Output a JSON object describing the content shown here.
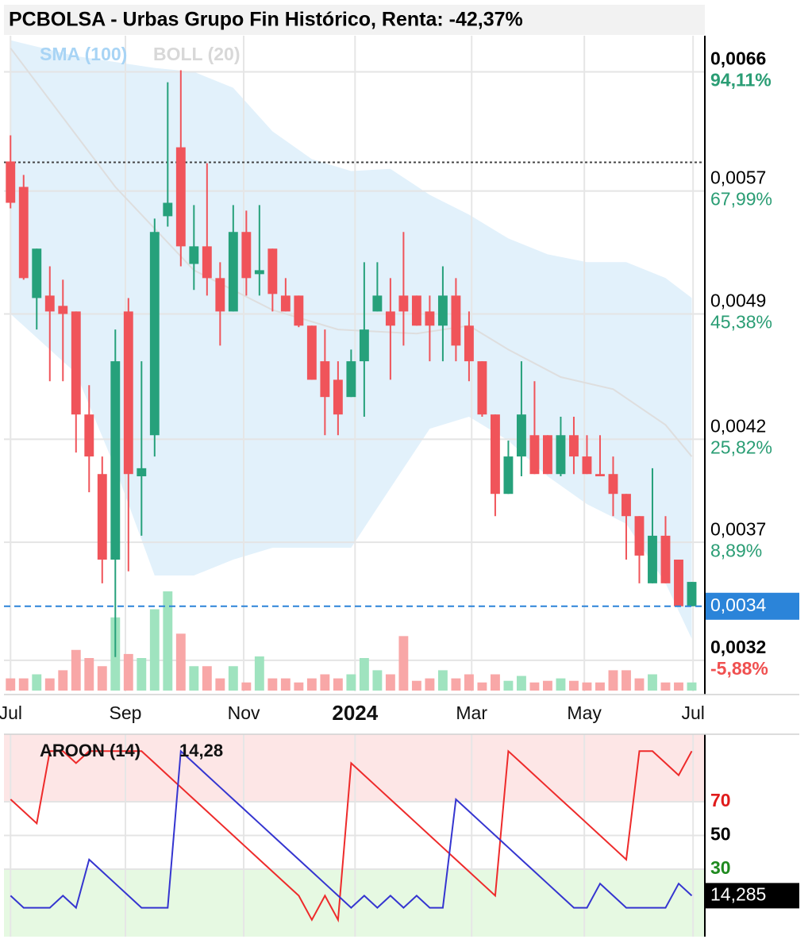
{
  "chart_data": [
    {
      "type": "candlestick",
      "title": "PCBOLSA - Urbas Grupo Fin Histórico, Renta: -42,37%",
      "x": [
        0,
        1,
        2,
        3,
        4,
        5,
        6,
        7,
        8,
        9,
        10,
        11,
        12,
        13,
        14,
        15,
        16,
        17,
        18,
        19,
        20,
        21,
        22,
        23,
        24,
        25,
        26,
        27,
        28,
        29,
        30,
        31,
        32,
        33,
        34,
        35,
        36,
        37,
        38,
        39,
        40,
        41,
        42,
        43,
        44,
        45,
        46,
        47,
        48,
        49,
        50,
        51,
        52
      ],
      "open": [
        0.005911,
        0.005729,
        0.004997,
        0.005012,
        0.004949,
        0.004915,
        0.00433,
        0.004024,
        0.003622,
        0.004915,
        0.004013,
        0.004221,
        0.005526,
        0.006015,
        0.005211,
        0.005325,
        0.005121,
        0.004915,
        0.00542,
        0.005146,
        0.00531,
        0.005012,
        0.005012,
        0.00483,
        0.004623,
        0.004519,
        0.004424,
        0.004623,
        0.004915,
        0.004915,
        0.005012,
        0.005012,
        0.004915,
        0.00483,
        0.005012,
        0.00483,
        0.004623,
        0.00433,
        0.003927,
        0.004112,
        0.004221,
        0.004221,
        0.004024,
        0.004221,
        0.004112,
        0.004024,
        0.004024,
        0.003927,
        0.003821,
        0.003518,
        0.00373,
        0.003622,
        0.00342
      ],
      "high": [
        0.006104,
        0.005814,
        0.00531,
        0.005196,
        0.005111,
        0.004915,
        0.004489,
        0.004112,
        0.004807,
        0.004997,
        0.004623,
        0.00551,
        0.006516,
        0.006613,
        0.005602,
        0.005898,
        0.005222,
        0.005602,
        0.005564,
        0.005602,
        0.00531,
        0.005121,
        0.005012,
        0.00483,
        0.004807,
        0.004623,
        0.00469,
        0.005222,
        0.005222,
        0.005121,
        0.00542,
        0.005012,
        0.005012,
        0.005196,
        0.005121,
        0.004915,
        0.004623,
        0.00433,
        0.004193,
        0.004623,
        0.004511,
        0.004221,
        0.004318,
        0.004318,
        0.004221,
        0.004221,
        0.004112,
        0.003927,
        0.003821,
        0.004053,
        0.003821,
        0.003622,
        0.003524
      ],
      "low": [
        0.00558,
        0.005111,
        0.004807,
        0.004511,
        0.004511,
        0.004132,
        0.003935,
        0.003518,
        0.003213,
        0.00357,
        0.00373,
        0.004112,
        0.005456,
        0.005196,
        0.005047,
        0.005012,
        0.004713,
        0.004915,
        0.005012,
        0.005012,
        0.004915,
        0.004915,
        0.004821,
        0.004519,
        0.004221,
        0.004221,
        0.004424,
        0.004318,
        0.004915,
        0.004519,
        0.004713,
        0.00483,
        0.004623,
        0.004623,
        0.004623,
        0.004511,
        0.004318,
        0.003821,
        0.003927,
        0.004013,
        0.004024,
        0.004024,
        0.004013,
        0.004024,
        0.004024,
        0.004013,
        0.003821,
        0.003622,
        0.003518,
        0.003518,
        0.003518,
        0.00342,
        0.00342
      ],
      "close": [
        0.005618,
        0.005121,
        0.00531,
        0.004915,
        0.0049,
        0.00433,
        0.004112,
        0.003622,
        0.004623,
        0.004024,
        0.004053,
        0.00542,
        0.005618,
        0.005325,
        0.005325,
        0.005121,
        0.004915,
        0.00542,
        0.005121,
        0.005171,
        0.005022,
        0.004915,
        0.00483,
        0.004519,
        0.004424,
        0.00433,
        0.004623,
        0.004807,
        0.005012,
        0.00483,
        0.004915,
        0.00483,
        0.00483,
        0.005012,
        0.004713,
        0.004623,
        0.00433,
        0.003927,
        0.004112,
        0.00433,
        0.004024,
        0.004024,
        0.004221,
        0.004112,
        0.004024,
        0.004013,
        0.003927,
        0.003821,
        0.00364,
        0.00373,
        0.003518,
        0.00342,
        0.003524
      ],
      "volume": [
        15,
        15,
        20,
        15,
        25,
        50,
        40,
        30,
        90,
        45,
        40,
        100,
        122,
        70,
        30,
        30,
        15,
        30,
        10,
        42,
        15,
        15,
        10,
        15,
        20,
        15,
        20,
        40,
        25,
        20,
        67,
        12,
        15,
        25,
        15,
        20,
        10,
        20,
        12,
        18,
        10,
        12,
        15,
        12,
        10,
        10,
        25,
        25,
        15,
        20,
        10,
        10,
        10
      ],
      "up_color": "#26a17b",
      "down_color": "#f0545a",
      "volume_up_color": "#9fe3bf",
      "volume_down_color": "#f8a7a7",
      "sma": {
        "name": "SMA (100)",
        "label_color": "#a8d4f5",
        "color": "#dedede",
        "x": [
          0,
          8,
          14,
          20,
          25,
          31,
          35,
          38,
          42,
          46,
          50,
          52
        ],
        "values": [
          0.006795,
          0.005729,
          0.005171,
          0.004924,
          0.004807,
          0.004783,
          0.00483,
          0.00469,
          0.004534,
          0.004467,
          0.004275,
          0.004112
        ]
      },
      "boll": {
        "name": "BOLL (20)",
        "label_color": "#d8d8d8",
        "color": "#e2f1fb",
        "upper": {
          "x": [
            0,
            5,
            11,
            14,
            17,
            20,
            23,
            26,
            29,
            32,
            35,
            38,
            41,
            44,
            47,
            50,
            52
          ],
          "values": [
            0.006862,
            0.006729,
            0.006632,
            0.0066,
            0.006472,
            0.006134,
            0.005928,
            0.005842,
            0.005857,
            0.005673,
            0.005537,
            0.005377,
            0.005273,
            0.005222,
            0.005222,
            0.005121,
            0.004997
          ]
        },
        "lower": {
          "x": [
            0,
            5,
            8,
            10,
            11,
            14,
            17,
            20,
            23,
            26,
            28,
            30,
            32,
            35,
            38,
            41,
            44,
            47,
            50,
            52
          ],
          "values": [
            0.0049,
            0.004555,
            0.004053,
            0.003712,
            0.003552,
            0.003552,
            0.003622,
            0.003675,
            0.003675,
            0.003675,
            0.00386,
            0.004053,
            0.004255,
            0.004318,
            0.004193,
            0.004013,
            0.003878,
            0.003785,
            0.003518,
            0.003286
          ]
        }
      },
      "reference_line": 0.005905,
      "last_price": {
        "value": 0.00342,
        "label": "0,0034",
        "color": "#2b84d9"
      },
      "xlim": [
        -0.5,
        53
      ],
      "xticks": [
        {
          "value": 0,
          "label": "Jul"
        },
        {
          "value": 8.77,
          "label": "Sep"
        },
        {
          "value": 17.8,
          "label": "Nov"
        },
        {
          "value": 26.3,
          "label": "2024",
          "bold": true
        },
        {
          "value": 35.2,
          "label": "Mar"
        },
        {
          "value": 43.8,
          "label": "May"
        },
        {
          "value": 52.1,
          "label": "Jul"
        }
      ],
      "ylim": [
        0.00308,
        0.0069
      ],
      "log_scale": true,
      "grid": true,
      "yticks": [
        {
          "value": 0.0066,
          "label": "0,0066",
          "change": "94,11%",
          "change_color": "#2a9d74",
          "bold": true
        },
        {
          "value": 0.0057,
          "label": "0,0057",
          "change": "67,99%",
          "change_color": "#2a9d74"
        },
        {
          "value": 0.0049,
          "label": "0,0049",
          "change": "45,38%",
          "change_color": "#2a9d74"
        },
        {
          "value": 0.0042,
          "label": "0,0042",
          "change": "25,82%",
          "change_color": "#2a9d74"
        },
        {
          "value": 0.0037,
          "label": "0,0037",
          "change": "8,89%",
          "change_color": "#2a9d74"
        },
        {
          "value": 0.0032,
          "label": "0,0032",
          "change": "-5,88%",
          "change_color": "#f05050",
          "bold": true
        }
      ]
    },
    {
      "type": "line",
      "title": "AROON (14)",
      "current_label": "14,28",
      "x": [
        0,
        1,
        2,
        3,
        4,
        5,
        6,
        7,
        8,
        9,
        10,
        11,
        12,
        13,
        14,
        15,
        16,
        17,
        18,
        19,
        20,
        21,
        22,
        23,
        24,
        25,
        26,
        27,
        28,
        29,
        30,
        31,
        32,
        33,
        34,
        35,
        36,
        37,
        38,
        39,
        40,
        41,
        42,
        43,
        44,
        45,
        46,
        47,
        48,
        49,
        50,
        51,
        52
      ],
      "series": [
        {
          "color": "#ee2b2b",
          "values": [
            71.43,
            64.29,
            57.14,
            100,
            100,
            92.86,
            100,
            100,
            100,
            100,
            100,
            92.86,
            85.71,
            78.57,
            71.43,
            64.29,
            57.14,
            50,
            42.86,
            35.71,
            28.57,
            21.43,
            14.29,
            0,
            14.29,
            0,
            92.86,
            85.71,
            78.57,
            71.43,
            64.29,
            57.14,
            50,
            42.86,
            35.71,
            28.57,
            21.43,
            14.29,
            100,
            92.86,
            85.71,
            78.57,
            71.43,
            64.29,
            57.14,
            50,
            42.86,
            35.71,
            100,
            100,
            92.86,
            85.71,
            100
          ]
        },
        {
          "color": "#3535d0",
          "values": [
            14.29,
            7.14,
            7.14,
            7.14,
            14.29,
            7.14,
            35.71,
            28.57,
            21.43,
            14.29,
            7.14,
            7.14,
            7.14,
            100,
            92.86,
            85.71,
            78.57,
            71.43,
            64.29,
            57.14,
            50,
            42.86,
            35.71,
            28.57,
            21.43,
            14.29,
            7.14,
            14.29,
            7.14,
            14.29,
            7.14,
            14.29,
            7.14,
            7.14,
            71.43,
            64.29,
            57.14,
            50,
            42.86,
            35.71,
            28.57,
            21.43,
            14.29,
            7.14,
            7.14,
            21.43,
            14.29,
            7.14,
            7.14,
            7.14,
            7.14,
            21.43,
            14.29
          ]
        }
      ],
      "last_value": {
        "value": 14.285,
        "label": "14,285"
      },
      "ylim": [
        -10,
        110
      ],
      "yticks": [
        70,
        50,
        30
      ],
      "ytick_colors": [
        "#e01b1b",
        "#000000",
        "#1f8a1f"
      ],
      "zones": [
        {
          "from": 70,
          "to": 110,
          "color": "#fde6e6"
        },
        {
          "from": -10,
          "to": 30,
          "color": "#e6f9e2"
        }
      ]
    }
  ]
}
